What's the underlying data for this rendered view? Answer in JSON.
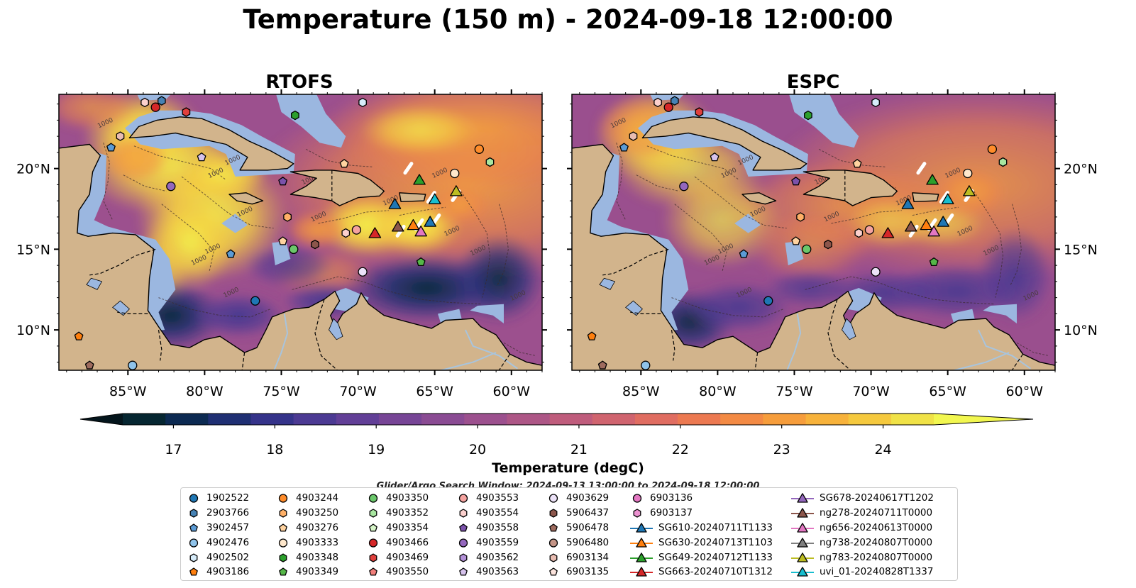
{
  "title": "Temperature (150 m) - 2024-09-18 12:00:00",
  "panels": [
    {
      "title": "RTOFS"
    },
    {
      "title": "ESPC"
    }
  ],
  "map": {
    "lon_range": [
      -89.5,
      -58
    ],
    "lat_range": [
      7.5,
      24.6
    ],
    "lon_ticks": [
      -85,
      -80,
      -75,
      -70,
      -65,
      -60
    ],
    "lon_tick_labels": [
      "85°W",
      "80°W",
      "75°W",
      "70°W",
      "65°W",
      "60°W"
    ],
    "lat_ticks": [
      10,
      15,
      20
    ],
    "lat_tick_labels": [
      "10°N",
      "15°N",
      "20°N"
    ],
    "isobath_label": "1000",
    "land_color": "#d2b48c",
    "shelf_color": "#9bb7e0",
    "river_color": "#a8c4dd"
  },
  "colorbar": {
    "label": "Temperature (degC)",
    "min": 16.5,
    "max": 24.5,
    "ticks": [
      17,
      18,
      19,
      20,
      21,
      22,
      23,
      24
    ],
    "tick_labels": [
      "17",
      "18",
      "19",
      "20",
      "21",
      "22",
      "23",
      "24"
    ],
    "colors": [
      "#062631",
      "#0c2a52",
      "#1f2f73",
      "#35338a",
      "#4c3a93",
      "#623f97",
      "#774596",
      "#8a4b93",
      "#9c508e",
      "#ad5686",
      "#bf5c7c",
      "#d0646f",
      "#e06d61",
      "#ec7951",
      "#f38a44",
      "#f69d3c",
      "#f7b23b",
      "#f5c93e",
      "#f0e247"
    ],
    "under_color": "#04151c",
    "over_color": "#f2f750"
  },
  "subtitle": "Glider/Argo Search Window: 2024-09-13 13:00:00 to 2024-09-18 12:00:00",
  "legend": {
    "columns": [
      [
        {
          "label": "1902522",
          "marker": "circle",
          "color": "#1f77b4"
        },
        {
          "label": "2903766",
          "marker": "hexagon",
          "color": "#4682b4"
        },
        {
          "label": "3902457",
          "marker": "pentagon",
          "color": "#5b9bd5"
        },
        {
          "label": "4902476",
          "marker": "circle",
          "color": "#8fc3ea"
        },
        {
          "label": "4902502",
          "marker": "hexagon",
          "color": "#d6ecfa"
        },
        {
          "label": "4903186",
          "marker": "pentagon",
          "color": "#ff7f0e"
        }
      ],
      [
        {
          "label": "4903244",
          "marker": "circle",
          "color": "#ff8c2a"
        },
        {
          "label": "4903250",
          "marker": "hexagon",
          "color": "#ffb067"
        },
        {
          "label": "4903276",
          "marker": "pentagon",
          "color": "#ffd3a0"
        },
        {
          "label": "4903333",
          "marker": "circle",
          "color": "#ffe8cc"
        },
        {
          "label": "4903348",
          "marker": "hexagon",
          "color": "#2ca02c"
        },
        {
          "label": "4903349",
          "marker": "pentagon",
          "color": "#55b748"
        }
      ],
      [
        {
          "label": "4903350",
          "marker": "circle",
          "color": "#6bc76b"
        },
        {
          "label": "4903352",
          "marker": "hexagon",
          "color": "#a8e6a0"
        },
        {
          "label": "4903354",
          "marker": "pentagon",
          "color": "#d6f5c8"
        },
        {
          "label": "4903466",
          "marker": "circle",
          "color": "#d62728"
        },
        {
          "label": "4903469",
          "marker": "hexagon",
          "color": "#e0403d"
        },
        {
          "label": "4903550",
          "marker": "pentagon",
          "color": "#f07e7a"
        }
      ],
      [
        {
          "label": "4903553",
          "marker": "circle",
          "color": "#f5a3a0"
        },
        {
          "label": "4903554",
          "marker": "hexagon",
          "color": "#fbd0cd"
        },
        {
          "label": "4903558",
          "marker": "pentagon",
          "color": "#7b52ab"
        },
        {
          "label": "4903559",
          "marker": "circle",
          "color": "#9467bd"
        },
        {
          "label": "4903562",
          "marker": "hexagon",
          "color": "#b391d8"
        },
        {
          "label": "4903563",
          "marker": "pentagon",
          "color": "#d6c2ec"
        }
      ],
      [
        {
          "label": "4903629",
          "marker": "circle",
          "color": "#ece2f8"
        },
        {
          "label": "5906437",
          "marker": "hexagon",
          "color": "#8c564b"
        },
        {
          "label": "5906478",
          "marker": "pentagon",
          "color": "#9e6b5e"
        },
        {
          "label": "5906480",
          "marker": "circle",
          "color": "#c49486"
        },
        {
          "label": "6903134",
          "marker": "hexagon",
          "color": "#e8bcb1"
        },
        {
          "label": "6903135",
          "marker": "pentagon",
          "color": "#fbe3dc"
        }
      ],
      [
        {
          "label": "6903136",
          "marker": "circle",
          "color": "#e377c2"
        },
        {
          "label": "6903137",
          "marker": "hexagon",
          "color": "#ec92d1"
        },
        {
          "label": "SG610-20240711T1133",
          "marker": "triangle",
          "color": "#1f77b4"
        },
        {
          "label": "SG630-20240713T1103",
          "marker": "triangle",
          "color": "#ff7f0e"
        },
        {
          "label": "SG649-20240712T1133",
          "marker": "triangle",
          "color": "#2ca02c"
        },
        {
          "label": "SG663-20240710T1312",
          "marker": "triangle",
          "color": "#d62728"
        }
      ],
      [
        {
          "label": "SG678-20240617T1202",
          "marker": "triangle",
          "color": "#9467bd"
        },
        {
          "label": "ng278-20240711T0000",
          "marker": "triangle",
          "color": "#8c564b"
        },
        {
          "label": "ng656-20240613T0000",
          "marker": "triangle",
          "color": "#e377c2"
        },
        {
          "label": "ng738-20240807T0000",
          "marker": "triangle",
          "color": "#7f7f7f"
        },
        {
          "label": "ng783-20240807T0000",
          "marker": "triangle",
          "color": "#bcbd22"
        },
        {
          "label": "uvi_01-20240828T1337",
          "marker": "triangle",
          "color": "#17becf"
        }
      ]
    ]
  },
  "observations": [
    {
      "label": "1902522",
      "lon": -76.7,
      "lat": 11.8
    },
    {
      "label": "2903766",
      "lon": -82.8,
      "lat": 24.2
    },
    {
      "label": "3902457",
      "lon": -78.3,
      "lat": 14.7
    },
    {
      "label": "3902457",
      "lon": -86.1,
      "lat": 21.3
    },
    {
      "label": "4902476",
      "lon": -84.7,
      "lat": 7.8
    },
    {
      "label": "4902502",
      "lon": -69.7,
      "lat": 24.1
    },
    {
      "label": "4903186",
      "lon": -88.2,
      "lat": 9.6
    },
    {
      "label": "4903244",
      "lon": -62.1,
      "lat": 21.2
    },
    {
      "label": "4903250",
      "lon": -74.6,
      "lat": 17.0
    },
    {
      "label": "4903276",
      "lon": -70.9,
      "lat": 20.3
    },
    {
      "label": "4903276",
      "lon": -74.9,
      "lat": 15.5
    },
    {
      "label": "4903333",
      "lon": -63.7,
      "lat": 19.7
    },
    {
      "label": "4903348",
      "lon": -74.1,
      "lat": 23.3
    },
    {
      "label": "4903349",
      "lon": -65.9,
      "lat": 14.2
    },
    {
      "label": "4903350",
      "lon": -74.2,
      "lat": 15.0
    },
    {
      "label": "4903352",
      "lon": -61.4,
      "lat": 20.4
    },
    {
      "label": "4903466",
      "lon": -83.2,
      "lat": 23.8
    },
    {
      "label": "4903469",
      "lon": -81.2,
      "lat": 23.5
    },
    {
      "label": "4903553",
      "lon": -70.1,
      "lat": 16.2
    },
    {
      "label": "4903554",
      "lon": -83.9,
      "lat": 24.1
    },
    {
      "label": "4903554",
      "lon": -70.8,
      "lat": 16.0
    },
    {
      "label": "4903558",
      "lon": -74.9,
      "lat": 19.2
    },
    {
      "label": "4903559",
      "lon": -82.2,
      "lat": 18.9
    },
    {
      "label": "4903563",
      "lon": -80.2,
      "lat": 20.7
    },
    {
      "label": "4903629",
      "lon": -69.7,
      "lat": 13.6
    },
    {
      "label": "5906437",
      "lon": -72.8,
      "lat": 15.3
    },
    {
      "label": "5906478",
      "lon": -87.5,
      "lat": 7.8
    },
    {
      "label": "6903134",
      "lon": -85.5,
      "lat": 22.0
    },
    {
      "label": "SG610-20240711T1133",
      "lon": -67.6,
      "lat": 17.8
    },
    {
      "label": "SG649-20240712T1133",
      "lon": -66.0,
      "lat": 19.3
    },
    {
      "label": "SG663-20240710T1312",
      "lon": -68.9,
      "lat": 16.0
    },
    {
      "label": "ng278-20240711T0000",
      "lon": -67.4,
      "lat": 16.4
    },
    {
      "label": "SG630-20240713T1103",
      "lon": -66.4,
      "lat": 16.5
    },
    {
      "label": "ng656-20240613T0000",
      "lon": -65.9,
      "lat": 16.1
    },
    {
      "label": "SG610-20240711T1133",
      "lon": -65.3,
      "lat": 16.7
    },
    {
      "label": "uvi_01-20240828T1337",
      "lon": -65.0,
      "lat": 18.1
    },
    {
      "label": "ng783-20240807T0000",
      "lon": -63.6,
      "lat": 18.6
    }
  ]
}
